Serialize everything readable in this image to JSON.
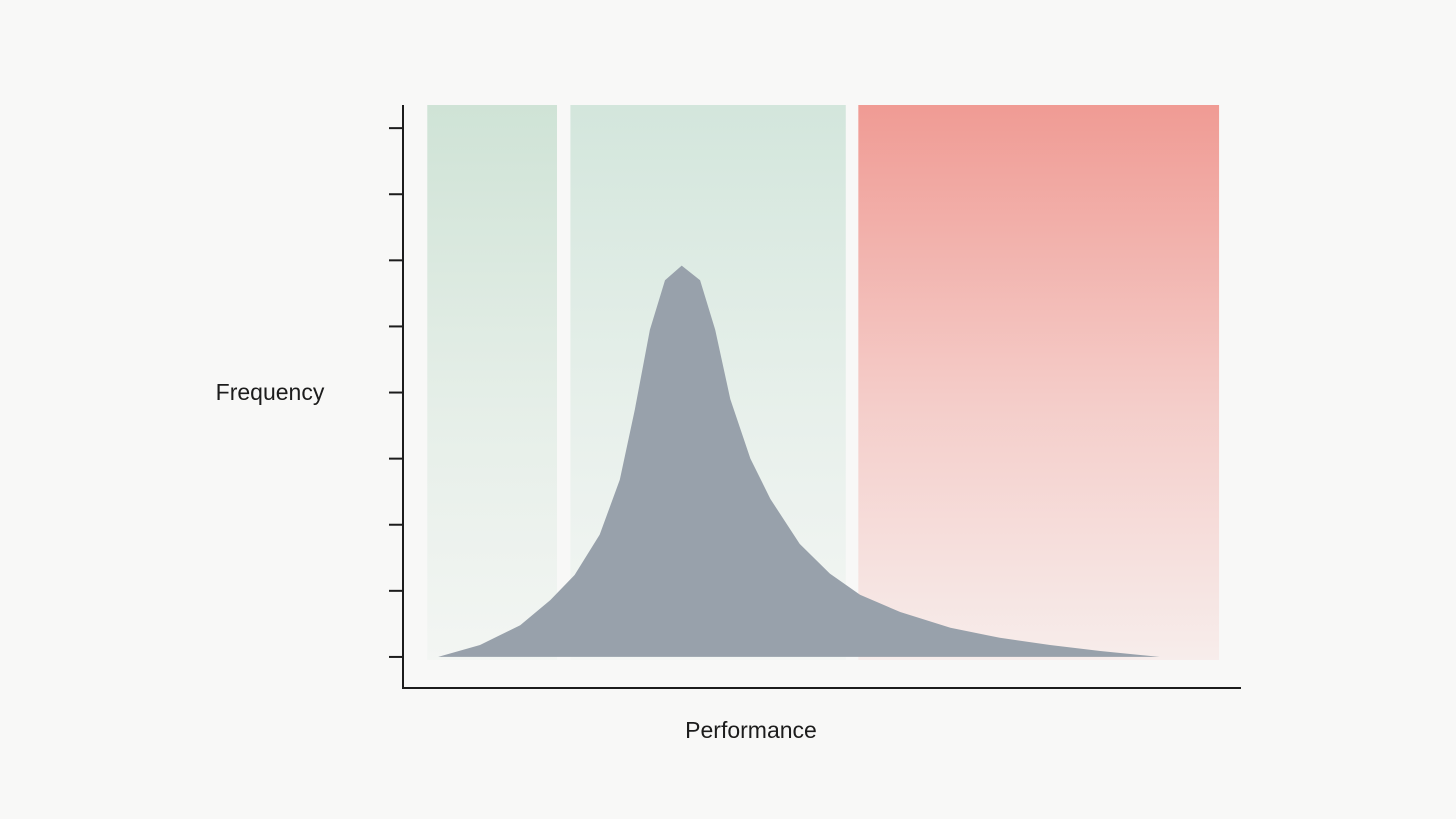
{
  "chart_data": {
    "type": "area",
    "x_label": "Performance",
    "y_label": "Frequency",
    "x": [
      4.2,
      9.2,
      14.0,
      17.6,
      20.5,
      23.5,
      25.9,
      27.7,
      29.5,
      31.3,
      33.3,
      35.5,
      37.3,
      39.1,
      41.5,
      43.9,
      47.4,
      51.0,
      54.6,
      59.4,
      65.4,
      71.3,
      77.3,
      83.3,
      90.4
    ],
    "values": [
      0,
      0.18,
      0.48,
      0.86,
      1.24,
      1.85,
      2.68,
      3.74,
      4.95,
      5.7,
      5.92,
      5.7,
      4.95,
      3.9,
      3.0,
      2.39,
      1.71,
      1.26,
      0.94,
      0.68,
      0.44,
      0.29,
      0.18,
      0.09,
      0
    ],
    "color": "#98a1ab",
    "regions": [
      {
        "xrange": [
          2.9,
          18.4
        ],
        "color": "#cfe3d6"
      },
      {
        "xrange": [
          20.0,
          52.9
        ],
        "color": "#d3e6dc"
      },
      {
        "xrange": [
          54.4,
          97.5
        ],
        "color": "#f09b94"
      }
    ],
    "xlim": [
      0,
      100
    ],
    "ylim": [
      -0.47,
      8.35
    ],
    "yticks": [
      0,
      1,
      2,
      3,
      4,
      5,
      6,
      7,
      8
    ]
  }
}
